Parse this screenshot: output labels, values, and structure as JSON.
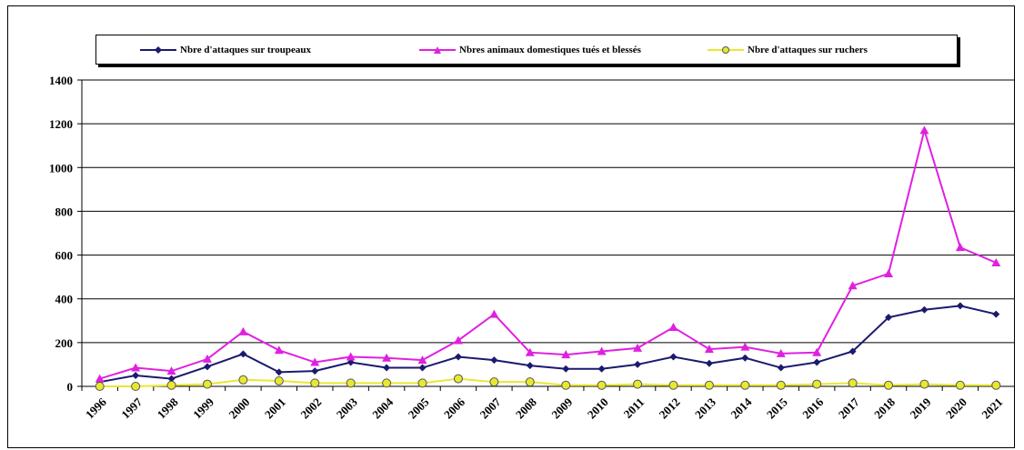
{
  "chart_data": {
    "type": "line",
    "title": "",
    "xlabel": "",
    "ylabel": "",
    "categories": [
      "1996",
      "1997",
      "1998",
      "1999",
      "2000",
      "2001",
      "2002",
      "2003",
      "2004",
      "2005",
      "2006",
      "2007",
      "2008",
      "2009",
      "2010",
      "2011",
      "2012",
      "2013",
      "2014",
      "2015",
      "2016",
      "2017",
      "2018",
      "2019",
      "2020",
      "2021"
    ],
    "ylim": [
      0,
      1400
    ],
    "yticks": [
      0,
      200,
      400,
      600,
      800,
      1000,
      1200,
      1400
    ],
    "grid": true,
    "legend_position": "top",
    "series": [
      {
        "name": "Nbre d'attaques sur troupeaux",
        "color": "#1a1a6e",
        "marker": "diamond",
        "values": [
          20,
          50,
          35,
          90,
          148,
          65,
          70,
          110,
          85,
          85,
          135,
          120,
          95,
          80,
          80,
          100,
          135,
          105,
          130,
          85,
          110,
          160,
          315,
          350,
          368,
          330
        ]
      },
      {
        "name": "Nbres animaux domestiques tués et blessés",
        "color": "#e020e0",
        "marker": "triangle",
        "values": [
          35,
          85,
          70,
          125,
          250,
          165,
          110,
          135,
          130,
          120,
          210,
          330,
          155,
          145,
          160,
          175,
          270,
          170,
          180,
          150,
          155,
          460,
          515,
          1170,
          635,
          565
        ]
      },
      {
        "name": "Nbre d'attaques sur ruchers",
        "color": "#e8e830",
        "marker": "circle",
        "values": [
          0,
          0,
          5,
          10,
          30,
          25,
          15,
          15,
          15,
          15,
          35,
          20,
          20,
          5,
          5,
          10,
          5,
          5,
          5,
          5,
          10,
          15,
          5,
          10,
          5,
          5
        ]
      }
    ]
  }
}
